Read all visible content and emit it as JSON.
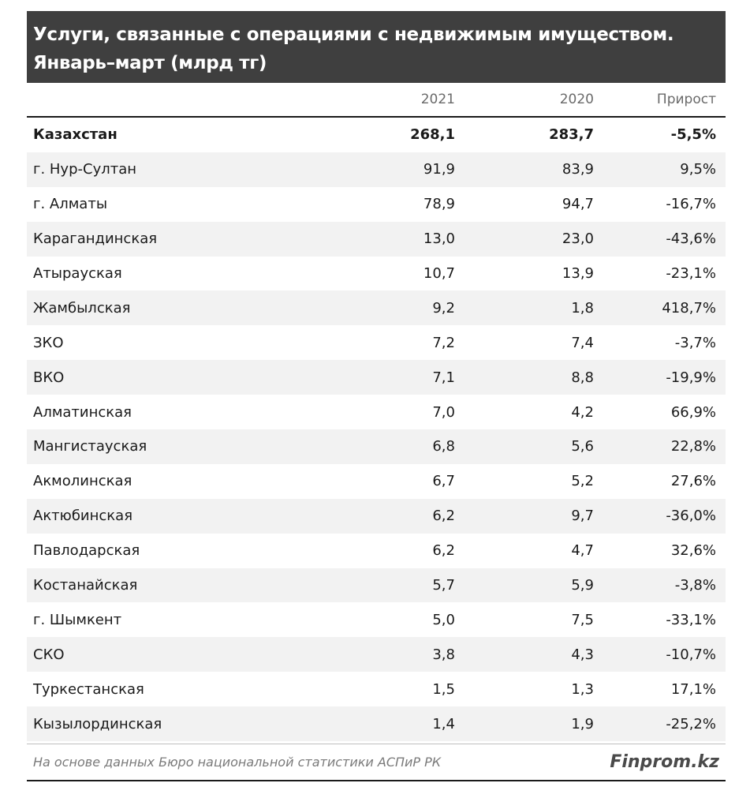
{
  "chart_data": {
    "type": "table",
    "title_line1": "Услуги, связанные с операциями с недвижимым имуществом.",
    "title_line2": "Январь–март (млрд тг)",
    "columns": [
      "",
      "2021",
      "2020",
      "Прирост"
    ],
    "rows": [
      {
        "name": "Казахстан",
        "v2021": "268,1",
        "v2020": "283,7",
        "growth": "-5,5%",
        "total": true
      },
      {
        "name": "г. Нур-Султан",
        "v2021": "91,9",
        "v2020": "83,9",
        "growth": "9,5%"
      },
      {
        "name": "г. Алматы",
        "v2021": "78,9",
        "v2020": "94,7",
        "growth": "-16,7%"
      },
      {
        "name": "Карагандинская",
        "v2021": "13,0",
        "v2020": "23,0",
        "growth": "-43,6%"
      },
      {
        "name": "Атырауская",
        "v2021": "10,7",
        "v2020": "13,9",
        "growth": "-23,1%"
      },
      {
        "name": "Жамбылская",
        "v2021": "9,2",
        "v2020": "1,8",
        "growth": "418,7%"
      },
      {
        "name": "ЗКО",
        "v2021": "7,2",
        "v2020": "7,4",
        "growth": "-3,7%"
      },
      {
        "name": "ВКО",
        "v2021": "7,1",
        "v2020": "8,8",
        "growth": "-19,9%"
      },
      {
        "name": "Алматинская",
        "v2021": "7,0",
        "v2020": "4,2",
        "growth": "66,9%"
      },
      {
        "name": "Мангистауская",
        "v2021": "6,8",
        "v2020": "5,6",
        "growth": "22,8%"
      },
      {
        "name": "Акмолинская",
        "v2021": "6,7",
        "v2020": "5,2",
        "growth": "27,6%"
      },
      {
        "name": "Актюбинская",
        "v2021": "6,2",
        "v2020": "9,7",
        "growth": "-36,0%"
      },
      {
        "name": "Павлодарская",
        "v2021": "6,2",
        "v2020": "4,7",
        "growth": "32,6%"
      },
      {
        "name": "Костанайская",
        "v2021": "5,7",
        "v2020": "5,9",
        "growth": "-3,8%"
      },
      {
        "name": "г. Шымкент",
        "v2021": "5,0",
        "v2020": "7,5",
        "growth": "-33,1%"
      },
      {
        "name": "СКО",
        "v2021": "3,8",
        "v2020": "4,3",
        "growth": "-10,7%"
      },
      {
        "name": "Туркестанская",
        "v2021": "1,5",
        "v2020": "1,3",
        "growth": "17,1%"
      },
      {
        "name": "Кызылординская",
        "v2021": "1,4",
        "v2020": "1,9",
        "growth": "-25,2%"
      }
    ],
    "source": "На основе данных Бюро национальной статистики АСПиР РК",
    "brand": "Finprom.kz"
  },
  "colors": {
    "title_bg": "#3f3f3f",
    "stripe": "#f2f2f2",
    "text": "#1a1a1a",
    "muted": "#7a7a7a"
  }
}
